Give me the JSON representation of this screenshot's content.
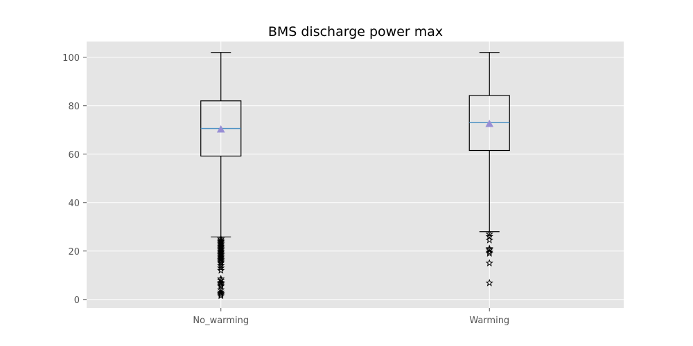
{
  "chart_data": {
    "type": "box",
    "title": "BMS discharge power max",
    "xlabel": "",
    "ylabel": "",
    "ylim": [
      -3.5,
      106.5
    ],
    "yticks": [
      0,
      20,
      40,
      60,
      80,
      100
    ],
    "grid": true,
    "colors": {
      "plot_background": "#e5e5e5",
      "grid": "#ffffff",
      "median": "#4a90c4",
      "mean_marker": "#988ed5",
      "box_edge": "#000000"
    },
    "categories": [
      "No_warming",
      "Warming"
    ],
    "boxes": [
      {
        "name": "No_warming",
        "whisker_low": 25.8,
        "q1": 59.2,
        "median": 70.6,
        "mean": 70.2,
        "q3": 82.0,
        "whisker_high": 102.0,
        "outliers": [
          25.0,
          24.5,
          24.0,
          23.5,
          23.0,
          22.5,
          22.0,
          21.5,
          21.0,
          20.5,
          20.0,
          19.5,
          19.0,
          18.5,
          18.0,
          17.5,
          17.0,
          16.5,
          16.0,
          15.5,
          15.0,
          14.0,
          13.0,
          12.0,
          8.5,
          8.0,
          7.0,
          6.5,
          6.0,
          5.5,
          4.0,
          3.0,
          2.5,
          2.0,
          1.5
        ]
      },
      {
        "name": "Warming",
        "whisker_low": 28.0,
        "q1": 61.5,
        "median": 73.0,
        "mean": 72.5,
        "q3": 84.2,
        "whisker_high": 102.0,
        "outliers": [
          27.0,
          26.0,
          24.5,
          21.0,
          20.5,
          19.5,
          19.0,
          15.0,
          6.8
        ]
      }
    ]
  }
}
